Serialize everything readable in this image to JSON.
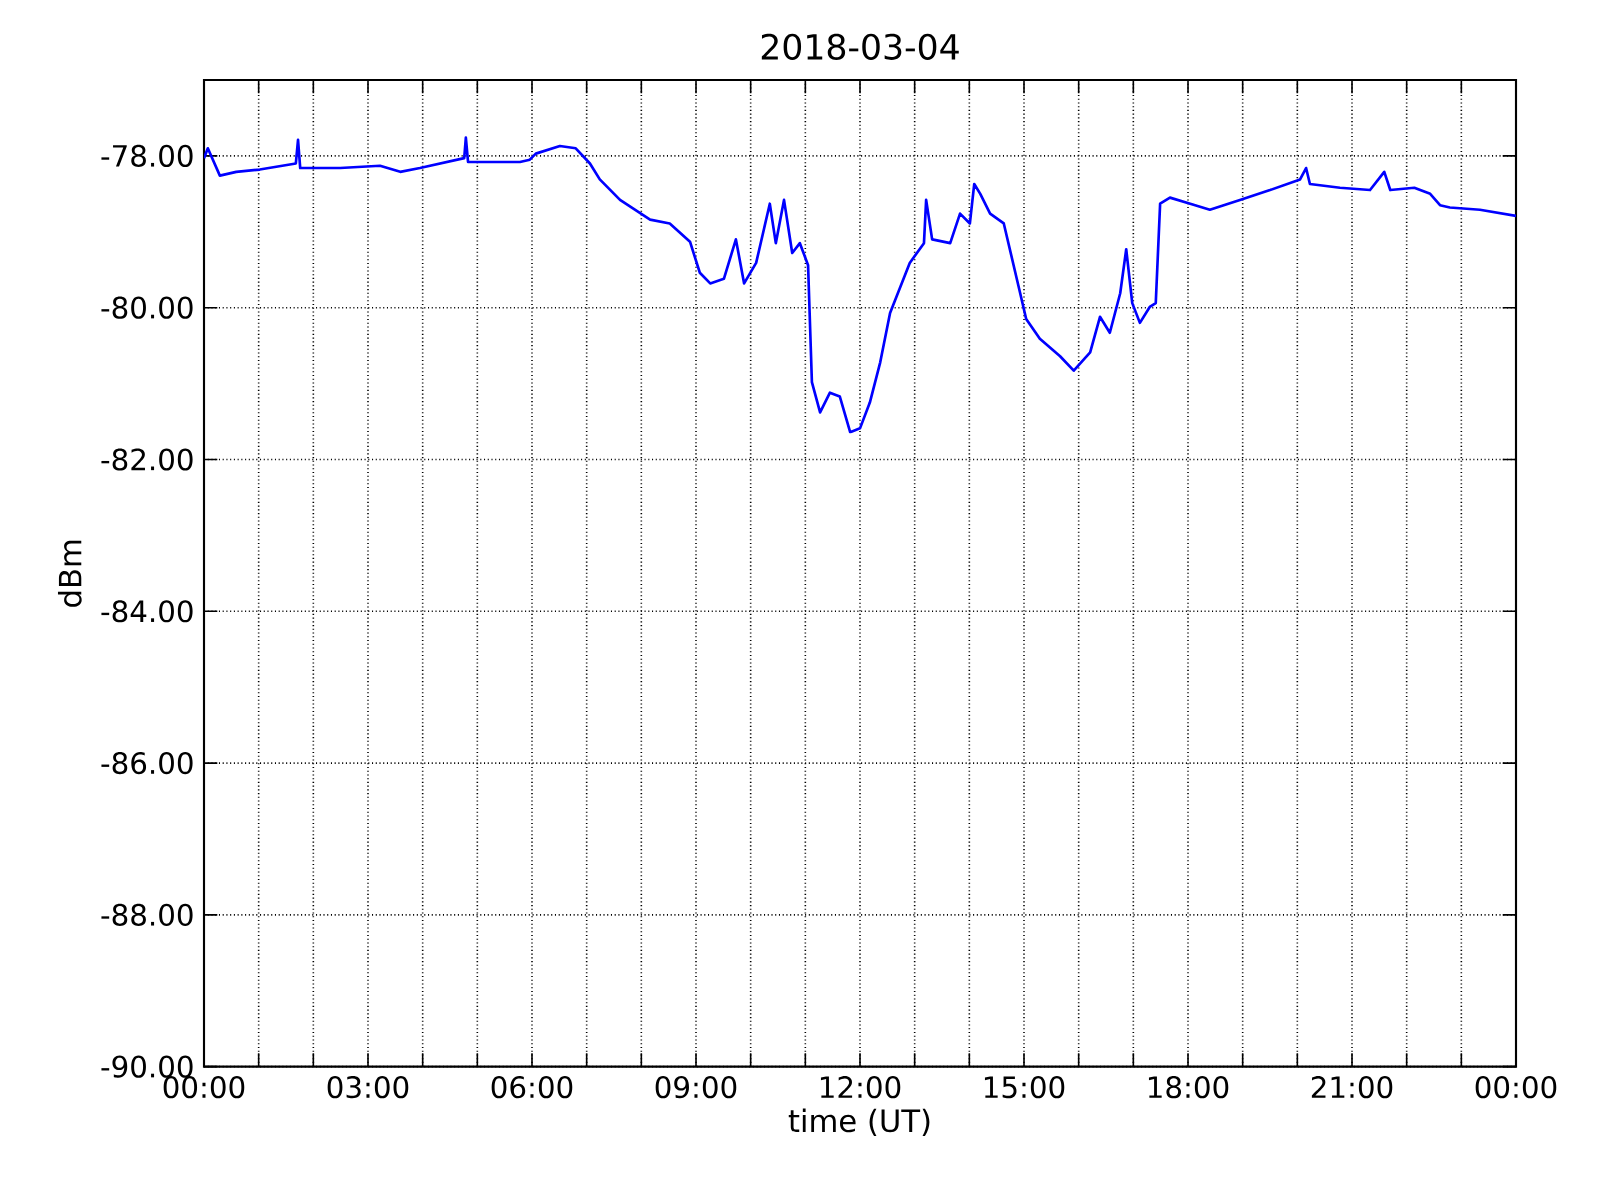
{
  "chart_data": {
    "type": "line",
    "title": "2018-03-04",
    "xlabel": "time (UT)",
    "ylabel": "dBm",
    "x": [
      0,
      0.07,
      0.29,
      0.59,
      1.02,
      1.68,
      1.72,
      1.76,
      2.49,
      3.22,
      3.59,
      3.95,
      4.76,
      4.79,
      4.83,
      5.78,
      5.96,
      6.07,
      6.51,
      6.8,
      7.06,
      7.24,
      7.61,
      8.16,
      8.52,
      8.89,
      9.07,
      9.26,
      9.51,
      9.73,
      9.88,
      10.1,
      10.35,
      10.46,
      10.61,
      10.76,
      10.9,
      11.05,
      11.12,
      11.27,
      11.45,
      11.63,
      11.82,
      12.0,
      12.18,
      12.37,
      12.55,
      12.91,
      13.17,
      13.21,
      13.32,
      13.65,
      13.83,
      14.01,
      14.09,
      14.2,
      14.38,
      14.63,
      14.93,
      15.04,
      15.29,
      15.66,
      15.91,
      16.21,
      16.39,
      16.57,
      16.76,
      16.87,
      16.98,
      17.12,
      17.3,
      17.41,
      17.49,
      17.67,
      18.04,
      18.4,
      18.95,
      19.5,
      20.05,
      20.16,
      20.23,
      20.78,
      21.33,
      21.59,
      21.7,
      22.14,
      22.43,
      22.61,
      22.79,
      23.34,
      24
    ],
    "series": [
      {
        "color": "#0000ff",
        "values": [
          -78.03,
          -77.9,
          -78.26,
          -78.21,
          -78.18,
          -78.1,
          -77.79,
          -78.16,
          -78.16,
          -78.13,
          -78.21,
          -78.16,
          -78.03,
          -77.76,
          -78.08,
          -78.08,
          -78.05,
          -77.97,
          -77.87,
          -77.9,
          -78.1,
          -78.31,
          -78.58,
          -78.84,
          -78.89,
          -79.13,
          -79.54,
          -79.68,
          -79.62,
          -79.1,
          -79.68,
          -79.41,
          -78.63,
          -79.15,
          -78.58,
          -79.28,
          -79.15,
          -79.44,
          -80.98,
          -81.38,
          -81.12,
          -81.17,
          -81.64,
          -81.59,
          -81.25,
          -80.72,
          -80.07,
          -79.41,
          -79.15,
          -78.58,
          -79.1,
          -79.15,
          -78.76,
          -78.89,
          -78.37,
          -78.5,
          -78.76,
          -78.89,
          -79.81,
          -80.15,
          -80.41,
          -80.64,
          -80.83,
          -80.59,
          -80.12,
          -80.33,
          -79.81,
          -79.23,
          -79.94,
          -80.2,
          -79.99,
          -79.94,
          -78.63,
          -78.55,
          -78.63,
          -78.71,
          -78.58,
          -78.45,
          -78.31,
          -78.16,
          -78.37,
          -78.42,
          -78.45,
          -78.21,
          -78.45,
          -78.42,
          -78.5,
          -78.65,
          -78.68,
          -78.71,
          -78.79
        ]
      }
    ],
    "xlim": [
      0,
      24
    ],
    "ylim": [
      -90,
      -77
    ],
    "xticks": [
      {
        "value": 0,
        "label": "00:00"
      },
      {
        "value": 1,
        "label": null
      },
      {
        "value": 2,
        "label": null
      },
      {
        "value": 3,
        "label": "03:00"
      },
      {
        "value": 4,
        "label": null
      },
      {
        "value": 5,
        "label": null
      },
      {
        "value": 6,
        "label": "06:00"
      },
      {
        "value": 7,
        "label": null
      },
      {
        "value": 8,
        "label": null
      },
      {
        "value": 9,
        "label": "09:00"
      },
      {
        "value": 10,
        "label": null
      },
      {
        "value": 11,
        "label": null
      },
      {
        "value": 12,
        "label": "12:00"
      },
      {
        "value": 13,
        "label": null
      },
      {
        "value": 14,
        "label": null
      },
      {
        "value": 15,
        "label": "15:00"
      },
      {
        "value": 16,
        "label": null
      },
      {
        "value": 17,
        "label": null
      },
      {
        "value": 18,
        "label": "18:00"
      },
      {
        "value": 19,
        "label": null
      },
      {
        "value": 20,
        "label": null
      },
      {
        "value": 21,
        "label": "21:00"
      },
      {
        "value": 22,
        "label": null
      },
      {
        "value": 23,
        "label": null
      },
      {
        "value": 24,
        "label": "00:00"
      }
    ],
    "yticks": [
      {
        "value": -90,
        "label": "-90.00"
      },
      {
        "value": -88,
        "label": "-88.00"
      },
      {
        "value": -86,
        "label": "-86.00"
      },
      {
        "value": -84,
        "label": "-84.00"
      },
      {
        "value": -82,
        "label": "-82.00"
      },
      {
        "value": -80,
        "label": "-80.00"
      },
      {
        "value": -78,
        "label": "-78.00"
      }
    ],
    "grid": true,
    "line_style": "solid",
    "marker": "none"
  }
}
